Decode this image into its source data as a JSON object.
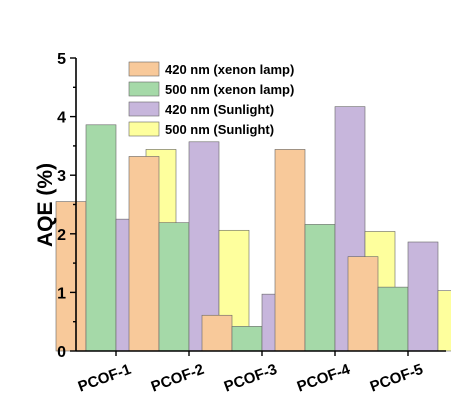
{
  "chart_data": {
    "type": "bar",
    "categories": [
      "PCOF-1",
      "PCOF-2",
      "PCOF-3",
      "PCOF-4",
      "PCOF-5"
    ],
    "series": [
      {
        "name": "420 nm (xenon lamp)",
        "color": "#f8c99a",
        "values": [
          2.55,
          3.32,
          0.61,
          3.44,
          1.61
        ]
      },
      {
        "name": "500 nm (xenon lamp)",
        "color": "#a5d9a8",
        "values": [
          3.86,
          2.19,
          0.42,
          2.16,
          1.09
        ]
      },
      {
        "name": "420 nm (Sunlight)",
        "color": "#c7b6dc",
        "values": [
          2.25,
          3.57,
          0.97,
          4.17,
          1.86
        ]
      },
      {
        "name": "500 nm (Sunlight)",
        "color": "#feff9d",
        "values": [
          3.44,
          2.06,
          0.57,
          2.04,
          1.03
        ]
      }
    ],
    "ylabel": "AQE (%)",
    "ylim": [
      0,
      5
    ],
    "yticks": [
      0,
      1,
      2,
      3,
      4,
      5
    ],
    "grid": false,
    "legend_position": "top"
  }
}
